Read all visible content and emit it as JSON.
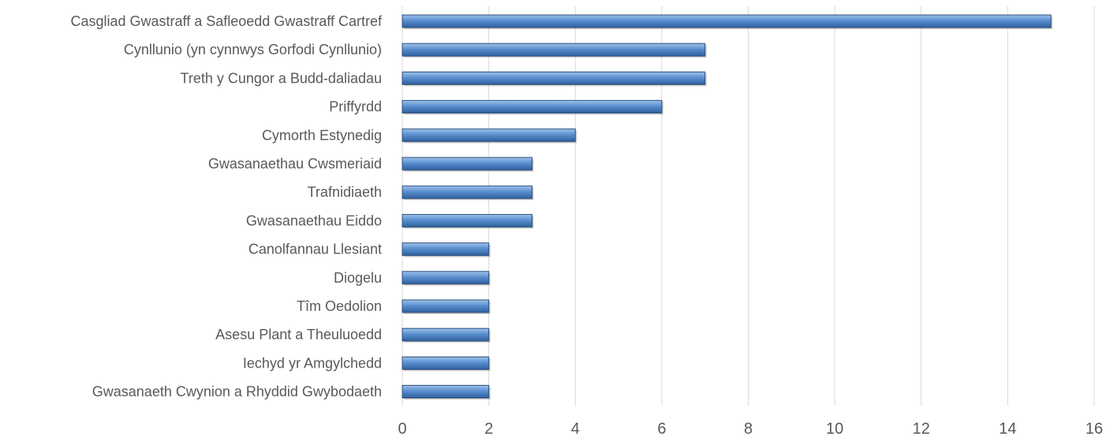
{
  "chart_data": {
    "type": "bar",
    "orientation": "horizontal",
    "title": "",
    "xlabel": "",
    "ylabel": "",
    "categories": [
      "Casgliad Gwastraff a Safleoedd Gwastraff Cartref",
      "Cynllunio (yn cynnwys Gorfodi Cynllunio)",
      "Treth y Cungor a Budd-daliadau",
      "Priffyrdd",
      "Cymorth Estynedig",
      "Gwasanaethau Cwsmeriaid",
      "Trafnidiaeth",
      "Gwasanaethau Eiddo",
      "Canolfannau Llesiant",
      "Diogelu",
      "Tîm Oedolion",
      "Asesu Plant a Theuluoedd",
      "Iechyd yr Amgylchedd",
      "Gwasanaeth Cwynion a Rhyddid Gwybodaeth"
    ],
    "values": [
      15,
      7,
      7,
      6,
      4,
      3,
      3,
      3,
      2,
      2,
      2,
      2,
      2,
      2
    ],
    "xlim": [
      0,
      16
    ],
    "xticks": [
      "0",
      "2",
      "4",
      "6",
      "8",
      "10",
      "12",
      "14",
      "16"
    ],
    "grid": "vertical",
    "legend": "none",
    "colors": {
      "bar_light": "#9ec2ea",
      "bar_mid": "#5b8fd0",
      "bar_dark": "#2f5f9e",
      "bar_edge": "#2e4f7a",
      "grid": "#d9d9d9",
      "text": "#595959"
    }
  }
}
